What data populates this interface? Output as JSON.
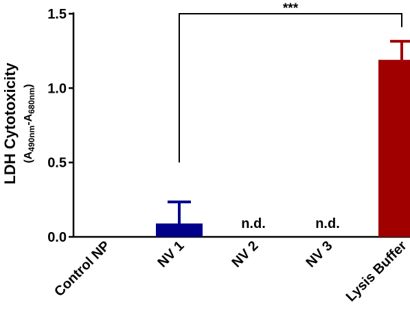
{
  "chart_data": {
    "type": "bar",
    "ylabel": {
      "main": "LDH Cytotoxicity",
      "sub_open": "(A",
      "sub_1": "490nm",
      "sub_dash": "-A",
      "sub_2": "680nm",
      "sub_close": ")"
    },
    "ylim": [
      0,
      1.5
    ],
    "yticks": [
      {
        "value": 0,
        "label": "0.0"
      },
      {
        "value": 0.5,
        "label": "0.5"
      },
      {
        "value": 1.0,
        "label": "1.0"
      },
      {
        "value": 1.5,
        "label": "1.5"
      }
    ],
    "categories": [
      "Control NP",
      "NV 1",
      "NV 2",
      "NV 3",
      "Lysis Buffer"
    ],
    "values": [
      0,
      0.09,
      0,
      0,
      1.19
    ],
    "error_upper": [
      0,
      0.145,
      0,
      0,
      0.125
    ],
    "colors": [
      "#000000",
      "#00008b",
      "#00008b",
      "#00008b",
      "#a00000"
    ],
    "bar_labels": [
      "",
      "",
      "n.d.",
      "n.d.",
      ""
    ],
    "significance": {
      "from_category": 1,
      "to_category": 4,
      "label": "***",
      "level": 1.5,
      "left_drop_to": 0.5,
      "right_drop_to": 1.41
    },
    "grid": false,
    "legend": "none"
  }
}
